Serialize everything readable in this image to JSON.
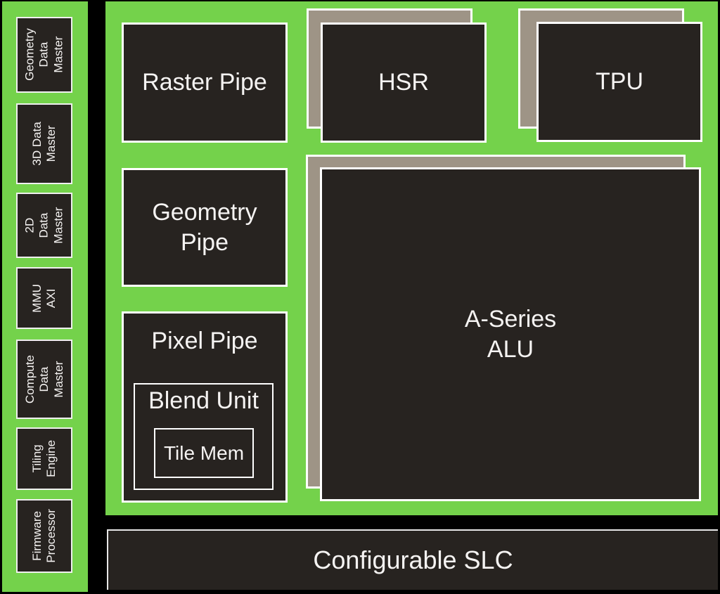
{
  "colors": {
    "background": "#000000",
    "panel_green": "#74d24b",
    "block_dark": "#272320",
    "shadow_gray": "#9e9486",
    "border_white": "#ffffff",
    "text_white": "#f5f3f2"
  },
  "sidebar": {
    "items": [
      {
        "label": "Geometry\nData\nMaster"
      },
      {
        "label": "3D Data\nMaster"
      },
      {
        "label": "2D\nData\nMaster"
      },
      {
        "label": "MMU\nAXI"
      },
      {
        "label": "Compute\nData\nMaster"
      },
      {
        "label": "Tiling\nEngine"
      },
      {
        "label": "Firmware\nProcessor"
      }
    ]
  },
  "main": {
    "raster_pipe": {
      "label": "Raster Pipe"
    },
    "hsr": {
      "label": "HSR"
    },
    "tpu": {
      "label": "TPU"
    },
    "geometry_pipe": {
      "label": "Geometry\nPipe"
    },
    "pixel_pipe": {
      "label": "Pixel Pipe"
    },
    "blend_unit": {
      "label": "Blend Unit"
    },
    "tile_mem": {
      "label": "Tile Mem"
    },
    "alu": {
      "label": "A-Series\nALU"
    }
  },
  "footer": {
    "slc": {
      "label": "Configurable SLC"
    }
  }
}
